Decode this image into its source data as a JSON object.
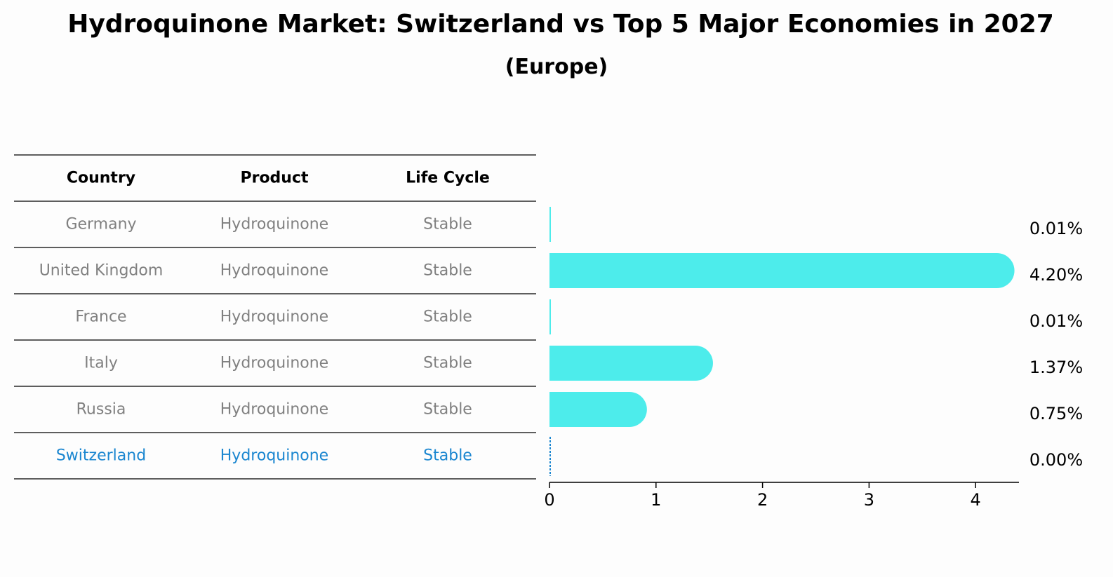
{
  "title": "Hydroquinone Market: Switzerland vs Top 5 Major Economies in 2027",
  "subtitle": "(Europe)",
  "table": {
    "headers": [
      "Country",
      "Product",
      "Life Cycle"
    ],
    "rows": [
      {
        "country": "Germany",
        "product": "Hydroquinone",
        "life_cycle": "Stable",
        "highlight": false
      },
      {
        "country": "United Kingdom",
        "product": "Hydroquinone",
        "life_cycle": "Stable",
        "highlight": false
      },
      {
        "country": "France",
        "product": "Hydroquinone",
        "life_cycle": "Stable",
        "highlight": false
      },
      {
        "country": "Italy",
        "product": "Hydroquinone",
        "life_cycle": "Stable",
        "highlight": false
      },
      {
        "country": "Russia",
        "product": "Hydroquinone",
        "life_cycle": "Stable",
        "highlight": false
      },
      {
        "country": "Switzerland",
        "product": "Hydroquinone",
        "life_cycle": "Stable",
        "highlight": true
      }
    ]
  },
  "colors": {
    "bar": "#4deceb",
    "highlight_text": "#1a86d0",
    "muted_text": "#808080"
  },
  "chart_data": {
    "type": "bar",
    "orientation": "horizontal",
    "categories": [
      "Germany",
      "United Kingdom",
      "France",
      "Italy",
      "Russia",
      "Switzerland"
    ],
    "values": [
      0.01,
      4.2,
      0.01,
      1.37,
      0.75,
      0.0
    ],
    "value_labels": [
      "0.01%",
      "4.20%",
      "0.01%",
      "1.37%",
      "0.75%",
      "0.00%"
    ],
    "xlim": [
      0,
      4.4
    ],
    "xticks": [
      0,
      1,
      2,
      3,
      4
    ],
    "grid": false
  }
}
